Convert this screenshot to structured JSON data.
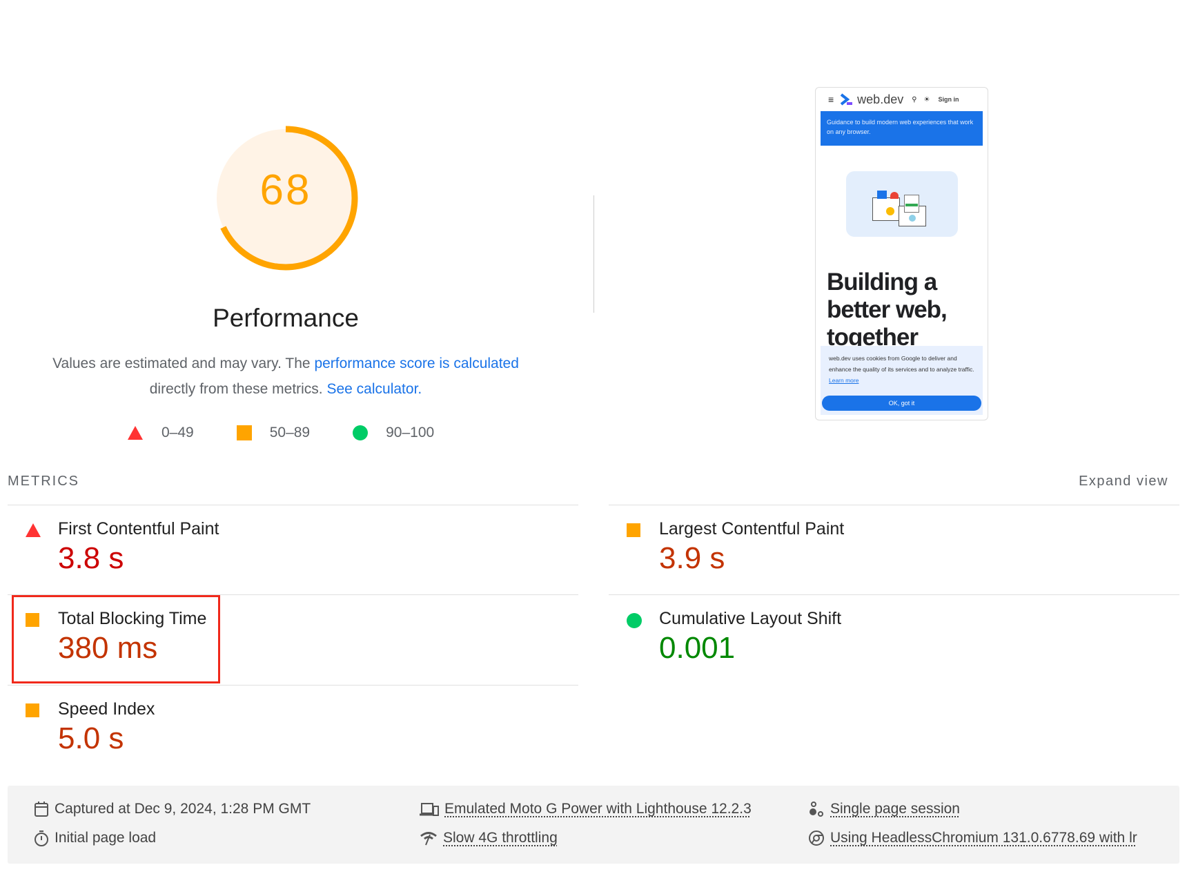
{
  "gauge": {
    "score": "68",
    "score_value": 68,
    "color": "#ffa400",
    "title": "Performance"
  },
  "description": {
    "text1": "Values are estimated and may vary. The ",
    "link1": "performance score is calculated",
    "text2": " directly from these metrics. ",
    "link2": "See calculator."
  },
  "legend": [
    {
      "icon": "triangle-fail-icon",
      "label": "0–49",
      "color": "#ff3333"
    },
    {
      "icon": "square-average-icon",
      "label": "50–89",
      "color": "#ffa400"
    },
    {
      "icon": "circle-pass-icon",
      "label": "90–100",
      "color": "#00cc66"
    }
  ],
  "screenshot": {
    "site": "web.dev",
    "sign_in": "Sign in",
    "banner": "Guidance to build modern web experiences that work on any browser.",
    "headline": "Building a better web, together",
    "cookie_text": "web.dev uses cookies from Google to deliver and enhance the quality of its services and to analyze traffic.",
    "learn_more": "Learn more",
    "ok_button": "OK, got it"
  },
  "metrics": {
    "heading": "METRICS",
    "expand": "Expand view",
    "items": [
      {
        "label": "First Contentful Paint",
        "value": "3.8 s",
        "rating": "fail"
      },
      {
        "label": "Largest Contentful Paint",
        "value": "3.9 s",
        "rating": "average"
      },
      {
        "label": "Total Blocking Time",
        "value": "380 ms",
        "rating": "average"
      },
      {
        "label": "Cumulative Layout Shift",
        "value": "0.001",
        "rating": "pass"
      },
      {
        "label": "Speed Index",
        "value": "5.0 s",
        "rating": "average"
      }
    ]
  },
  "footer": {
    "captured": "Captured at Dec 9, 2024, 1:28 PM GMT",
    "load": "Initial page load",
    "device": "Emulated Moto G Power with Lighthouse 12.2.3",
    "throttling": "Slow 4G throttling",
    "session": "Single page session",
    "browser": "Using HeadlessChromium 131.0.6778.69 with lr"
  }
}
